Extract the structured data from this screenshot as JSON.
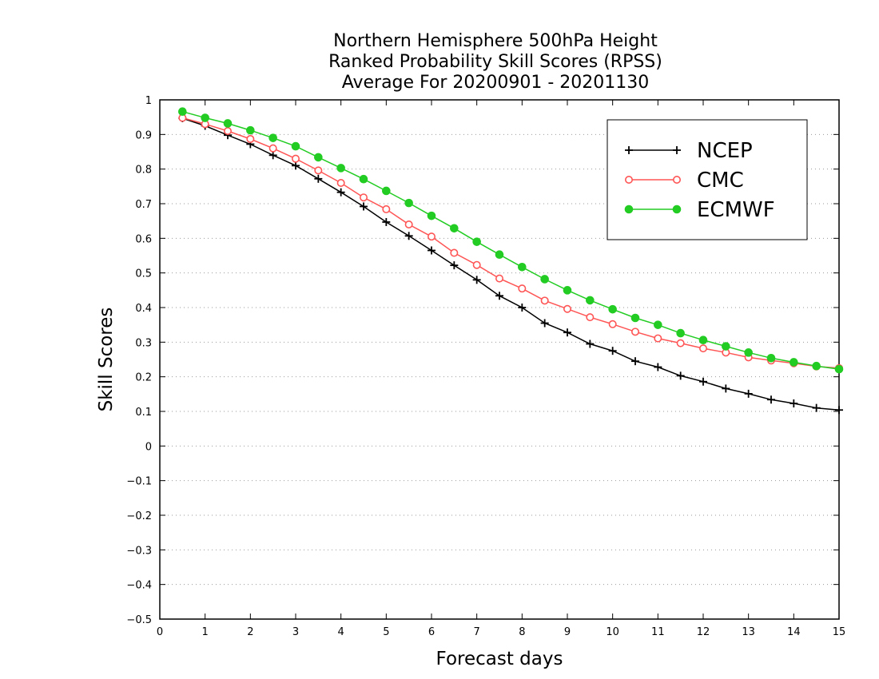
{
  "chart_data": {
    "type": "line",
    "title": [
      "Northern Hemisphere 500hPa Height",
      "Ranked Probability Skill Scores (RPSS)",
      "Average For 20200901 - 20201130"
    ],
    "xlabel": "Forecast days",
    "ylabel": "Skill Scores",
    "xlim": [
      0,
      15
    ],
    "ylim": [
      -0.5,
      1
    ],
    "xticks": [
      "0",
      "1",
      "2",
      "3",
      "4",
      "5",
      "6",
      "7",
      "8",
      "9",
      "10",
      "11",
      "12",
      "13",
      "14",
      "15"
    ],
    "yticks": [
      "1",
      "0.9",
      "0.8",
      "0.7",
      "0.6",
      "0.5",
      "0.4",
      "0.3",
      "0.2",
      "0.1",
      "0",
      "−0.1",
      "−0.2",
      "−0.3",
      "−0.4",
      "−0.5"
    ],
    "grid": "horizontal-dotted",
    "legend_position": "top-right",
    "x": [
      0.5,
      1,
      1.5,
      2,
      2.5,
      3,
      3.5,
      4,
      4.5,
      5,
      5.5,
      6,
      6.5,
      7,
      7.5,
      8,
      8.5,
      9,
      9.5,
      10,
      10.5,
      11,
      11.5,
      12,
      12.5,
      13,
      13.5,
      14,
      14.5,
      15
    ],
    "series": [
      {
        "name": "NCEP",
        "color": "#000000",
        "marker": "plus",
        "values": [
          0.947,
          0.925,
          0.898,
          0.872,
          0.84,
          0.81,
          0.772,
          0.733,
          0.692,
          0.647,
          0.607,
          0.565,
          0.522,
          0.48,
          0.434,
          0.4,
          0.355,
          0.328,
          0.295,
          0.275,
          0.245,
          0.228,
          0.203,
          0.186,
          0.166,
          0.151,
          0.134,
          0.123,
          0.11,
          0.104
        ]
      },
      {
        "name": "CMC",
        "color": "#ff5555",
        "marker": "open-circle",
        "values": [
          0.948,
          0.93,
          0.91,
          0.887,
          0.86,
          0.83,
          0.796,
          0.76,
          0.718,
          0.684,
          0.64,
          0.605,
          0.558,
          0.523,
          0.484,
          0.455,
          0.42,
          0.396,
          0.372,
          0.352,
          0.33,
          0.311,
          0.297,
          0.282,
          0.27,
          0.256,
          0.247,
          0.239,
          0.23,
          0.225
        ]
      },
      {
        "name": "ECMWF",
        "color": "#22cc22",
        "marker": "filled-circle",
        "values": [
          0.966,
          0.948,
          0.932,
          0.912,
          0.89,
          0.866,
          0.834,
          0.803,
          0.771,
          0.737,
          0.702,
          0.665,
          0.629,
          0.59,
          0.553,
          0.517,
          0.482,
          0.45,
          0.421,
          0.395,
          0.37,
          0.35,
          0.326,
          0.306,
          0.288,
          0.27,
          0.254,
          0.242,
          0.231,
          0.222
        ]
      }
    ]
  }
}
